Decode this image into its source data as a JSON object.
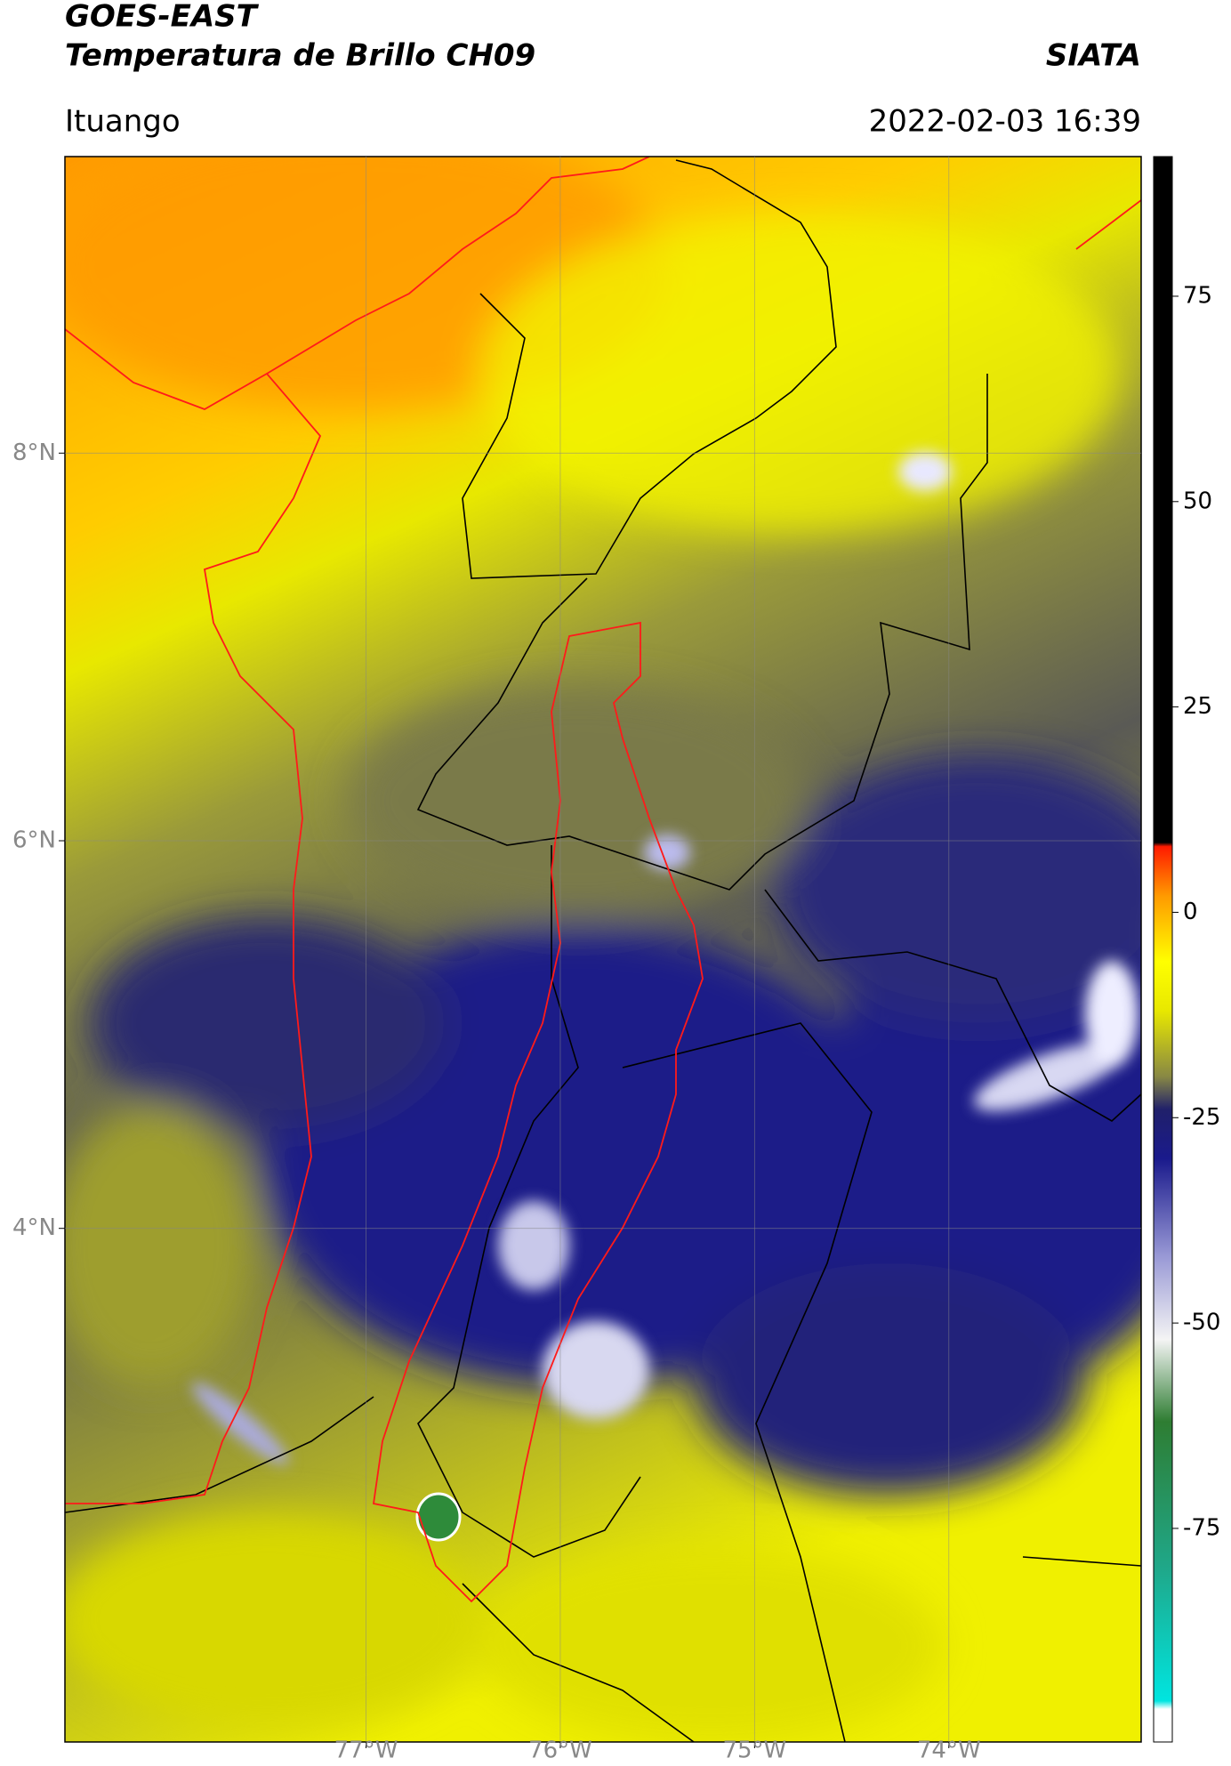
{
  "header": {
    "title": "GOES-EAST",
    "subtitle": "Temperatura de Brillo CH09",
    "brand": "SIATA",
    "location": "Ituango",
    "datetime": "2022-02-03 16:39"
  },
  "map": {
    "latlim": [
      1.35,
      9.53
    ],
    "lonlim": [
      -78.55,
      -73.01
    ],
    "lat_ticks": [
      {
        "value": 8,
        "label": "8°N"
      },
      {
        "value": 6,
        "label": "6°N"
      },
      {
        "value": 4,
        "label": "4°N"
      }
    ],
    "lon_ticks": [
      {
        "value": -77,
        "label": "77°W"
      },
      {
        "value": -76,
        "label": "76°W"
      },
      {
        "value": -75,
        "label": "75°W"
      },
      {
        "value": -74,
        "label": "74°W"
      }
    ]
  },
  "colorbar": {
    "lim": [
      -101,
      92
    ],
    "ticks": [
      75,
      50,
      25,
      0,
      -25,
      -50,
      -75
    ],
    "stops": [
      {
        "value": -101,
        "color": "#ffffff"
      },
      {
        "value": -97,
        "color": "#ffffff"
      },
      {
        "value": -96,
        "color": "#00e5e0"
      },
      {
        "value": -80,
        "color": "#1fa88a"
      },
      {
        "value": -62,
        "color": "#2e7d32"
      },
      {
        "value": -52,
        "color": "#f4f4f4"
      },
      {
        "value": -42,
        "color": "#9a9ad6"
      },
      {
        "value": -30,
        "color": "#1a1a8c"
      },
      {
        "value": -24,
        "color": "#20206a"
      },
      {
        "value": -20,
        "color": "#888844"
      },
      {
        "value": -12,
        "color": "#e8e800"
      },
      {
        "value": -6,
        "color": "#ffff00"
      },
      {
        "value": 2,
        "color": "#ff9a00"
      },
      {
        "value": 8,
        "color": "#ff1a00"
      },
      {
        "value": 8.5,
        "color": "#000000"
      },
      {
        "value": 92,
        "color": "#000000"
      }
    ]
  }
}
